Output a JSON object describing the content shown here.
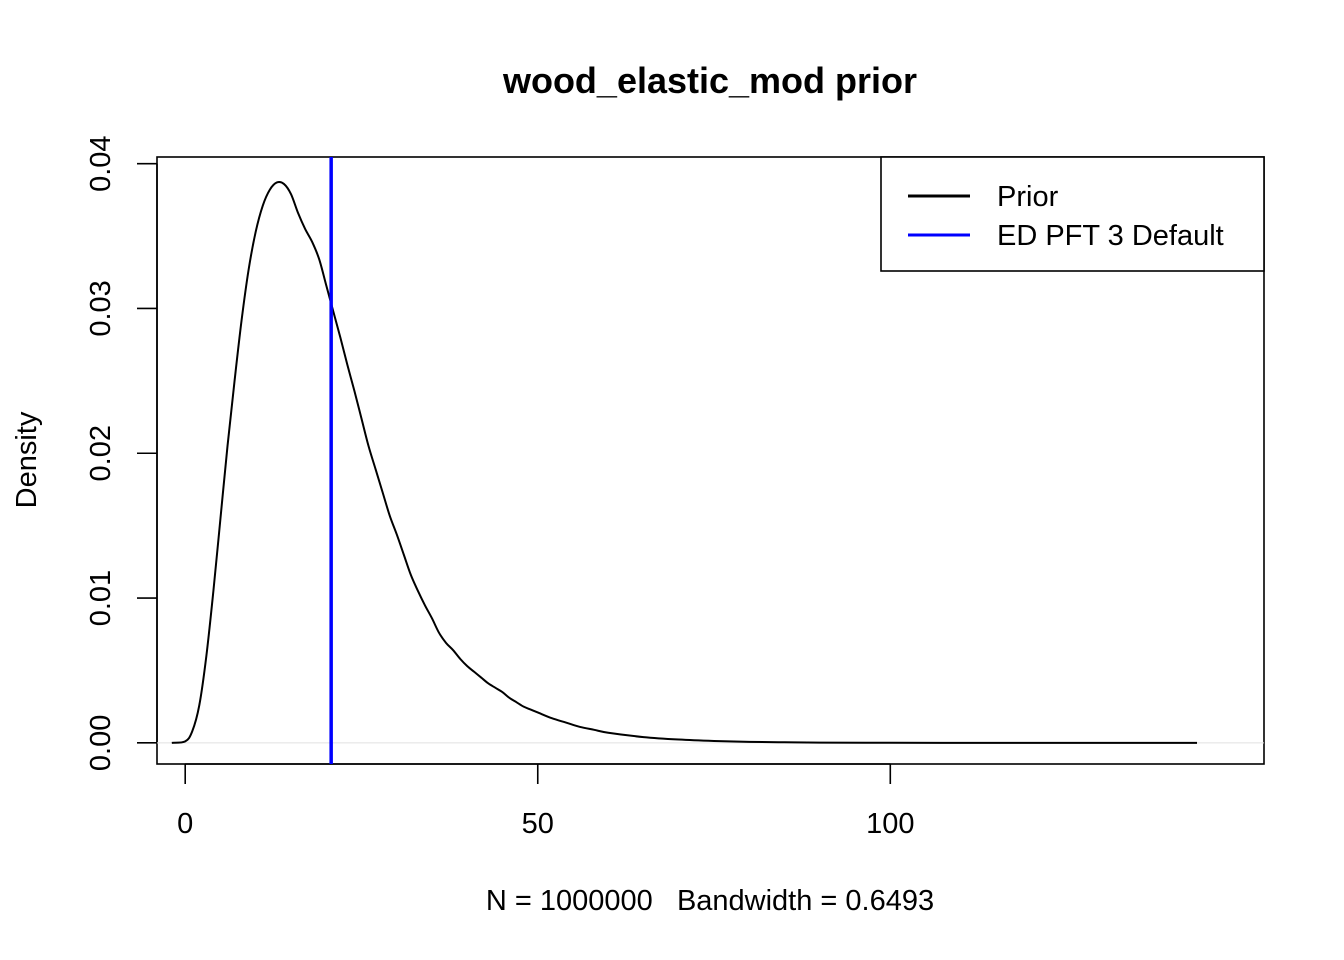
{
  "chart_data": {
    "type": "line",
    "title": "wood_elastic_mod prior",
    "xlabel": "N = 1000000   Bandwidth = 0.6493",
    "ylabel": "Density",
    "xlim": [
      -4,
      153
    ],
    "ylim": [
      -0.00146,
      0.04046
    ],
    "x_ticks": [
      0,
      50,
      100
    ],
    "x_tick_labels": [
      "0",
      "50",
      "100"
    ],
    "y_ticks": [
      0,
      0.01,
      0.02,
      0.03,
      0.04
    ],
    "y_tick_labels": [
      "0.00",
      "0.01",
      "0.02",
      "0.03",
      "0.04"
    ],
    "grid": false,
    "legend": {
      "placement": "top-right",
      "entries": [
        {
          "label": "Prior",
          "color": "#000000"
        },
        {
          "label": "ED PFT 3 Default",
          "color": "#0000ff"
        }
      ]
    },
    "series": [
      {
        "name": "Prior",
        "color": "#000000",
        "x": [
          -1.9,
          0,
          1,
          2,
          3,
          4,
          5,
          6,
          7,
          8,
          9,
          10,
          11,
          12,
          13,
          14,
          15,
          16,
          17,
          18,
          19,
          20,
          21,
          22,
          23,
          24,
          25,
          26,
          27,
          28,
          29,
          30,
          31,
          32,
          33,
          34,
          35,
          36,
          37,
          38,
          39,
          40,
          41,
          42,
          43,
          44,
          45,
          46,
          47,
          48,
          49,
          50,
          52,
          54,
          56,
          58,
          60,
          65,
          70,
          75,
          80,
          85,
          90,
          100,
          110,
          120,
          130,
          143.5
        ],
        "y": [
          0,
          0.0001,
          0.0008,
          0.0026,
          0.006,
          0.0105,
          0.0155,
          0.0205,
          0.025,
          0.0292,
          0.0327,
          0.0353,
          0.0371,
          0.0382,
          0.0387,
          0.0386,
          0.0379,
          0.0366,
          0.0355,
          0.0346,
          0.0334,
          0.0316,
          0.0298,
          0.028,
          0.0261,
          0.0243,
          0.0224,
          0.0205,
          0.0189,
          0.0173,
          0.0157,
          0.0144,
          0.013,
          0.0116,
          0.0105,
          0.0095,
          0.0086,
          0.0076,
          0.0069,
          0.0064,
          0.0058,
          0.0053,
          0.0049,
          0.0045,
          0.0041,
          0.0038,
          0.0035,
          0.0031,
          0.0028,
          0.0025,
          0.0023,
          0.0021,
          0.0017,
          0.0014,
          0.0011,
          0.0009,
          0.0007,
          0.0004,
          0.00023,
          0.00013,
          7e-05,
          4e-05,
          2e-05,
          5e-06,
          2e-06,
          1e-06,
          0,
          0
        ]
      }
    ],
    "reference_lines": [
      {
        "name": "ED PFT 3 Default",
        "x": 20.7,
        "color": "#0000ff"
      }
    ]
  }
}
